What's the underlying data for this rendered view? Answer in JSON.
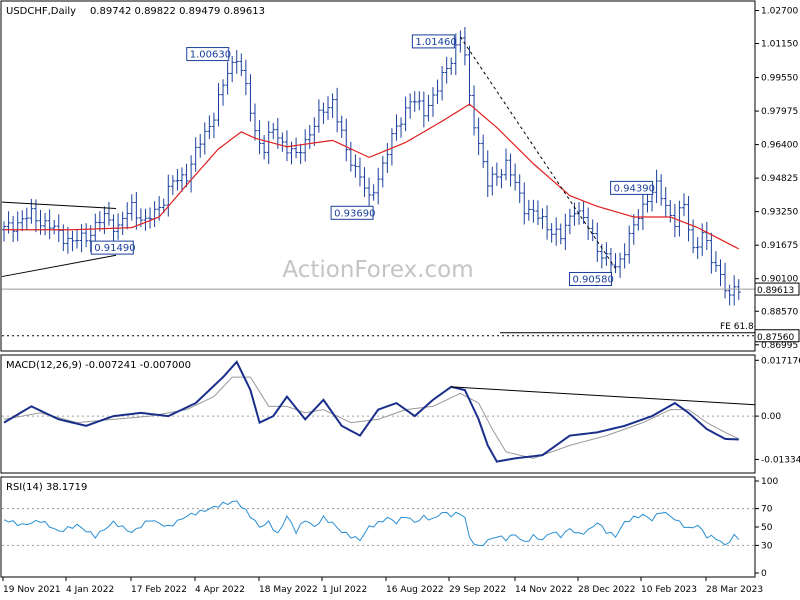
{
  "chart_data": [
    {
      "type": "bar",
      "panel": "price",
      "subtype": "ohlc-daily",
      "title": "USDCHF,Daily",
      "ohlc_readout": [
        "0.89742",
        "0.89822",
        "0.89479",
        "0.89613"
      ],
      "watermark": "ActionForex.com",
      "ylim": [
        0.8675,
        1.031
      ],
      "y_ticks": [
        "1.02700",
        "1.01150",
        "0.99550",
        "0.97975",
        "0.96400",
        "0.94825",
        "0.93250",
        "0.91675",
        "0.90100",
        "0.88570",
        "0.86995"
      ],
      "current_price_label": "0.89613",
      "target_label": "0.87560",
      "target_note": "FE 61.8",
      "sma_color": "#e02020",
      "bar_color": "#1a3f9c",
      "price_path": [
        [
          0,
          0.924
        ],
        [
          6,
          0.931
        ],
        [
          11,
          0.924
        ],
        [
          15,
          0.918
        ],
        [
          18,
          0.921
        ],
        [
          22,
          0.93
        ],
        [
          25,
          0.925
        ],
        [
          28,
          0.935
        ],
        [
          31,
          0.927
        ],
        [
          34,
          0.935
        ],
        [
          37,
          0.946
        ],
        [
          40,
          0.95
        ],
        [
          43,
          0.965
        ],
        [
          46,
          0.978
        ],
        [
          49,
          0.998
        ],
        [
          51,
          1.006
        ],
        [
          53,
          0.99
        ],
        [
          55,
          0.97
        ],
        [
          57,
          0.962
        ],
        [
          59,
          0.971
        ],
        [
          61,
          0.965
        ],
        [
          64,
          0.958
        ],
        [
          67,
          0.97
        ],
        [
          70,
          0.98
        ],
        [
          72,
          0.985
        ],
        [
          75,
          0.96
        ],
        [
          78,
          0.95
        ],
        [
          80,
          0.937
        ],
        [
          83,
          0.955
        ],
        [
          86,
          0.972
        ],
        [
          89,
          0.985
        ],
        [
          92,
          0.98
        ],
        [
          95,
          0.99
        ],
        [
          98,
          1.005
        ],
        [
          100,
          1.0146
        ],
        [
          101,
          1.005
        ],
        [
          102,
          0.985
        ],
        [
          104,
          0.965
        ],
        [
          106,
          0.945
        ],
        [
          110,
          0.955
        ],
        [
          114,
          0.935
        ],
        [
          118,
          0.928
        ],
        [
          122,
          0.92
        ],
        [
          125,
          0.935
        ],
        [
          128,
          0.925
        ],
        [
          131,
          0.912
        ],
        [
          134,
          0.9058
        ],
        [
          138,
          0.925
        ],
        [
          141,
          0.94
        ],
        [
          143,
          0.9439
        ],
        [
          145,
          0.935
        ],
        [
          147,
          0.928
        ],
        [
          149,
          0.935
        ],
        [
          151,
          0.915
        ],
        [
          153,
          0.922
        ],
        [
          155,
          0.91
        ],
        [
          157,
          0.904
        ],
        [
          159,
          0.89
        ],
        [
          160,
          0.897
        ],
        [
          161,
          0.8961
        ]
      ],
      "sma_path": [
        [
          0,
          0.924
        ],
        [
          15,
          0.924
        ],
        [
          28,
          0.925
        ],
        [
          34,
          0.93
        ],
        [
          40,
          0.945
        ],
        [
          47,
          0.962
        ],
        [
          52,
          0.97
        ],
        [
          55,
          0.967
        ],
        [
          62,
          0.963
        ],
        [
          72,
          0.966
        ],
        [
          80,
          0.958
        ],
        [
          88,
          0.965
        ],
        [
          96,
          0.975
        ],
        [
          102,
          0.983
        ],
        [
          108,
          0.972
        ],
        [
          116,
          0.955
        ],
        [
          124,
          0.94
        ],
        [
          130,
          0.935
        ],
        [
          138,
          0.93
        ],
        [
          146,
          0.93
        ],
        [
          152,
          0.925
        ],
        [
          161,
          0.915
        ]
      ],
      "annotations": [
        {
          "label": "1.01460",
          "x": 100,
          "y": 1.0146
        },
        {
          "label": "1.00630",
          "x": 51,
          "y": 1.0063
        },
        {
          "label": "0.93690",
          "x": 80,
          "y": 0.9369
        },
        {
          "label": "0.91490",
          "x": 20,
          "y": 0.9149
        },
        {
          "label": "0.90580",
          "x": 134,
          "y": 0.9058
        },
        {
          "label": "0.94390",
          "x": 143,
          "y": 0.9439
        }
      ],
      "x_labels": [
        "19 Nov 2021",
        "4 Jan 2022",
        "17 Feb 2022",
        "4 Apr 2022",
        "18 May 2022",
        "1 Jul 2022",
        "16 Aug 2022",
        "29 Sep 2022",
        "14 Nov 2022",
        "28 Dec 2022",
        "10 Feb 2023",
        "28 Mar 2023"
      ]
    },
    {
      "type": "line",
      "panel": "macd",
      "title": "MACD(12,26,9) -0.007241 -0.007000",
      "ylim": [
        -0.0172,
        0.0185
      ],
      "y_ticks": [
        "0.017176",
        "0.00",
        "-0.01334"
      ],
      "macd_path": [
        [
          0,
          -0.002
        ],
        [
          6,
          0.003
        ],
        [
          12,
          -0.001
        ],
        [
          18,
          -0.003
        ],
        [
          24,
          0.0
        ],
        [
          30,
          0.001
        ],
        [
          36,
          0.0
        ],
        [
          42,
          0.004
        ],
        [
          48,
          0.012
        ],
        [
          51,
          0.0167
        ],
        [
          54,
          0.008
        ],
        [
          56,
          -0.002
        ],
        [
          59,
          0.0
        ],
        [
          62,
          0.006
        ],
        [
          66,
          -0.001
        ],
        [
          70,
          0.005
        ],
        [
          74,
          -0.003
        ],
        [
          78,
          -0.006
        ],
        [
          82,
          0.002
        ],
        [
          86,
          0.004
        ],
        [
          90,
          0.0
        ],
        [
          94,
          0.005
        ],
        [
          98,
          0.009
        ],
        [
          101,
          0.008
        ],
        [
          104,
          -0.001
        ],
        [
          106,
          -0.009
        ],
        [
          108,
          -0.014
        ],
        [
          112,
          -0.013
        ],
        [
          118,
          -0.012
        ],
        [
          124,
          -0.006
        ],
        [
          130,
          -0.005
        ],
        [
          136,
          -0.003
        ],
        [
          142,
          0.0
        ],
        [
          147,
          0.004
        ],
        [
          150,
          0.001
        ],
        [
          154,
          -0.004
        ],
        [
          158,
          -0.007
        ],
        [
          161,
          -0.0072
        ]
      ],
      "signal_path": [
        [
          0,
          -0.001
        ],
        [
          8,
          0.001
        ],
        [
          16,
          -0.002
        ],
        [
          24,
          -0.001
        ],
        [
          32,
          0.0
        ],
        [
          40,
          0.002
        ],
        [
          46,
          0.006
        ],
        [
          50,
          0.012
        ],
        [
          54,
          0.012
        ],
        [
          58,
          0.003
        ],
        [
          62,
          0.003
        ],
        [
          66,
          0.001
        ],
        [
          70,
          0.002
        ],
        [
          76,
          -0.002
        ],
        [
          82,
          -0.001
        ],
        [
          88,
          0.002
        ],
        [
          94,
          0.003
        ],
        [
          100,
          0.007
        ],
        [
          104,
          0.004
        ],
        [
          107,
          -0.004
        ],
        [
          110,
          -0.011
        ],
        [
          116,
          -0.013
        ],
        [
          124,
          -0.009
        ],
        [
          132,
          -0.006
        ],
        [
          140,
          -0.002
        ],
        [
          146,
          0.002
        ],
        [
          150,
          0.002
        ],
        [
          154,
          -0.002
        ],
        [
          158,
          -0.005
        ],
        [
          161,
          -0.007
        ]
      ],
      "trend_line": [
        [
          98,
          0.009
        ],
        [
          161,
          0.0035
        ]
      ]
    },
    {
      "type": "line",
      "panel": "rsi",
      "title": "RSI(14) 38.1719",
      "ylim": [
        0,
        100
      ],
      "y_ticks": [
        "100",
        "70",
        "50",
        "30",
        "0"
      ],
      "rsi_path": [
        [
          0,
          58
        ],
        [
          4,
          52
        ],
        [
          8,
          57
        ],
        [
          12,
          45
        ],
        [
          16,
          52
        ],
        [
          20,
          40
        ],
        [
          24,
          55
        ],
        [
          28,
          44
        ],
        [
          32,
          58
        ],
        [
          36,
          50
        ],
        [
          40,
          62
        ],
        [
          44,
          68
        ],
        [
          48,
          75
        ],
        [
          51,
          78
        ],
        [
          54,
          62
        ],
        [
          56,
          50
        ],
        [
          58,
          55
        ],
        [
          60,
          42
        ],
        [
          62,
          62
        ],
        [
          64,
          45
        ],
        [
          66,
          58
        ],
        [
          68,
          50
        ],
        [
          70,
          60
        ],
        [
          72,
          54
        ],
        [
          74,
          45
        ],
        [
          76,
          40
        ],
        [
          78,
          36
        ],
        [
          80,
          50
        ],
        [
          82,
          54
        ],
        [
          84,
          60
        ],
        [
          86,
          55
        ],
        [
          88,
          62
        ],
        [
          90,
          55
        ],
        [
          92,
          61
        ],
        [
          94,
          58
        ],
        [
          96,
          66
        ],
        [
          98,
          63
        ],
        [
          100,
          65
        ],
        [
          101,
          60
        ],
        [
          102,
          38
        ],
        [
          104,
          28
        ],
        [
          106,
          35
        ],
        [
          108,
          40
        ],
        [
          110,
          37
        ],
        [
          112,
          42
        ],
        [
          114,
          33
        ],
        [
          116,
          40
        ],
        [
          118,
          36
        ],
        [
          120,
          45
        ],
        [
          122,
          40
        ],
        [
          124,
          48
        ],
        [
          126,
          42
        ],
        [
          128,
          46
        ],
        [
          130,
          55
        ],
        [
          132,
          45
        ],
        [
          134,
          40
        ],
        [
          136,
          55
        ],
        [
          138,
          60
        ],
        [
          140,
          63
        ],
        [
          142,
          58
        ],
        [
          144,
          67
        ],
        [
          146,
          62
        ],
        [
          148,
          55
        ],
        [
          150,
          48
        ],
        [
          152,
          52
        ],
        [
          154,
          40
        ],
        [
          156,
          38
        ],
        [
          158,
          30
        ],
        [
          160,
          40
        ],
        [
          161,
          38.17
        ]
      ]
    }
  ]
}
